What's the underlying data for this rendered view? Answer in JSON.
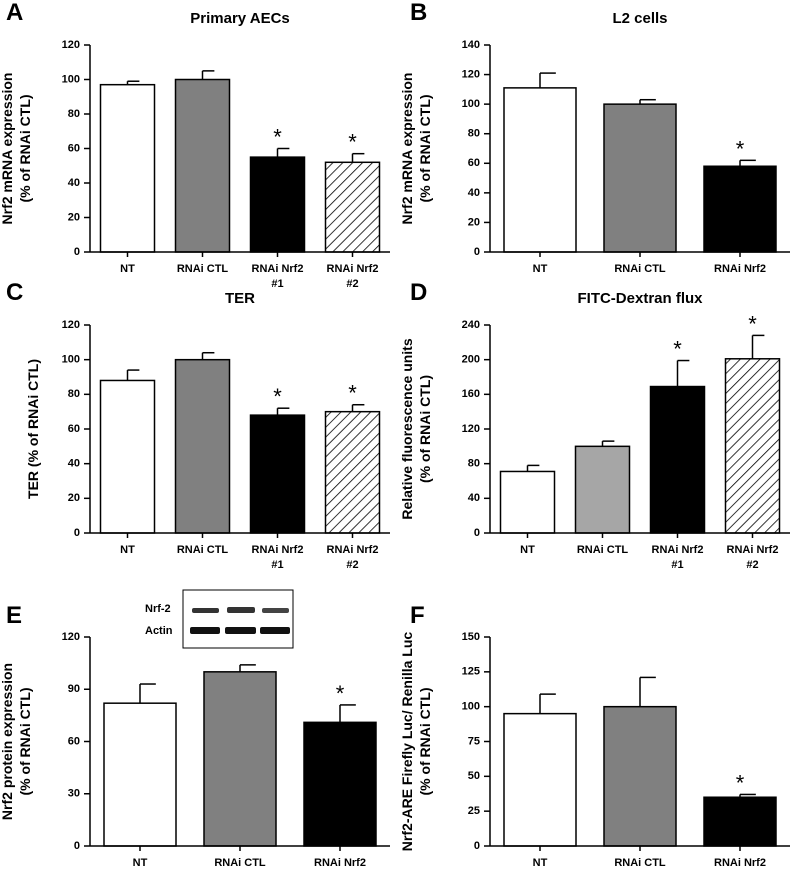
{
  "chart_data": [
    {
      "type": "bar",
      "panel": "A",
      "title": "Primary AECs",
      "ylabel": [
        "Nrf2 mRNA expression",
        "(% of RNAi CTL)"
      ],
      "categories": [
        [
          "NT"
        ],
        [
          "RNAi CTL"
        ],
        [
          "RNAi Nrf2",
          "#1"
        ],
        [
          "RNAi Nrf2",
          "#2"
        ]
      ],
      "values": [
        97,
        100,
        55,
        52
      ],
      "errors": [
        2,
        5,
        5,
        5
      ],
      "annotations": [
        null,
        null,
        "*",
        "*"
      ],
      "colors": [
        "#ffffff",
        "#808080",
        "#000000",
        "#ffffff"
      ],
      "hatch": [
        false,
        false,
        false,
        true
      ],
      "ylim": [
        0,
        120
      ],
      "yticks": [
        0,
        20,
        40,
        60,
        80,
        100,
        120
      ]
    },
    {
      "type": "bar",
      "panel": "B",
      "title": "L2 cells",
      "ylabel": [
        "Nrf2 mRNA expression",
        "(% of RNAi CTL)"
      ],
      "categories": [
        [
          "NT"
        ],
        [
          "RNAi CTL"
        ],
        [
          "RNAi Nrf2"
        ]
      ],
      "values": [
        111,
        100,
        58
      ],
      "errors": [
        10,
        3,
        4
      ],
      "annotations": [
        null,
        null,
        "*"
      ],
      "colors": [
        "#ffffff",
        "#808080",
        "#000000"
      ],
      "hatch": [
        false,
        false,
        false
      ],
      "ylim": [
        0,
        140
      ],
      "yticks": [
        0,
        20,
        40,
        60,
        80,
        100,
        120,
        140
      ]
    },
    {
      "type": "bar",
      "panel": "C",
      "title": "TER",
      "ylabel": [
        "TER (% of RNAi CTL)"
      ],
      "categories": [
        [
          "NT"
        ],
        [
          "RNAi CTL"
        ],
        [
          "RNAi Nrf2",
          "#1"
        ],
        [
          "RNAi Nrf2",
          "#2"
        ]
      ],
      "values": [
        88,
        100,
        68,
        70
      ],
      "errors": [
        6,
        4,
        4,
        4
      ],
      "annotations": [
        null,
        null,
        "*",
        "*"
      ],
      "colors": [
        "#ffffff",
        "#808080",
        "#000000",
        "#ffffff"
      ],
      "hatch": [
        false,
        false,
        false,
        true
      ],
      "ylim": [
        0,
        120
      ],
      "yticks": [
        0,
        20,
        40,
        60,
        80,
        100,
        120
      ]
    },
    {
      "type": "bar",
      "panel": "D",
      "title": "FITC-Dextran flux",
      "ylabel": [
        "Relative fluorescence units",
        "(% of RNAi CTL)"
      ],
      "categories": [
        [
          "NT"
        ],
        [
          "RNAi CTL"
        ],
        [
          "RNAi Nrf2",
          "#1"
        ],
        [
          "RNAi Nrf2",
          "#2"
        ]
      ],
      "values": [
        71,
        100,
        169,
        201
      ],
      "errors": [
        7,
        6,
        30,
        27
      ],
      "annotations": [
        null,
        null,
        "*",
        "*"
      ],
      "colors": [
        "#ffffff",
        "#a6a6a6",
        "#000000",
        "#ffffff"
      ],
      "hatch": [
        false,
        false,
        false,
        true
      ],
      "ylim": [
        0,
        240
      ],
      "yticks": [
        0,
        40,
        80,
        120,
        160,
        200,
        240
      ]
    },
    {
      "type": "bar",
      "panel": "E",
      "ylabel": [
        "Nrf2 protein expression",
        "(% of RNAi CTL)"
      ],
      "inset_labels": [
        "Nrf-2",
        "Actin"
      ],
      "categories": [
        [
          "NT"
        ],
        [
          "RNAi CTL"
        ],
        [
          "RNAi Nrf2"
        ]
      ],
      "values": [
        82,
        100,
        71
      ],
      "errors": [
        11,
        4,
        10
      ],
      "annotations": [
        null,
        null,
        "*"
      ],
      "colors": [
        "#ffffff",
        "#808080",
        "#000000"
      ],
      "hatch": [
        false,
        false,
        false
      ],
      "ylim": [
        0,
        120
      ],
      "yticks": [
        0,
        30,
        60,
        90,
        120
      ]
    },
    {
      "type": "bar",
      "panel": "F",
      "ylabel": [
        "Nrf2-ARE Firefly Luc/ Renilla Luc",
        "(% of RNAi CTL)"
      ],
      "categories": [
        [
          "NT"
        ],
        [
          "RNAi CTL"
        ],
        [
          "RNAi Nrf2"
        ]
      ],
      "values": [
        95,
        100,
        35
      ],
      "errors": [
        14,
        21,
        2
      ],
      "annotations": [
        null,
        null,
        "*"
      ],
      "colors": [
        "#ffffff",
        "#808080",
        "#000000"
      ],
      "hatch": [
        false,
        false,
        false
      ],
      "ylim": [
        0,
        150
      ],
      "yticks": [
        0,
        25,
        50,
        75,
        100,
        125,
        150
      ]
    }
  ]
}
